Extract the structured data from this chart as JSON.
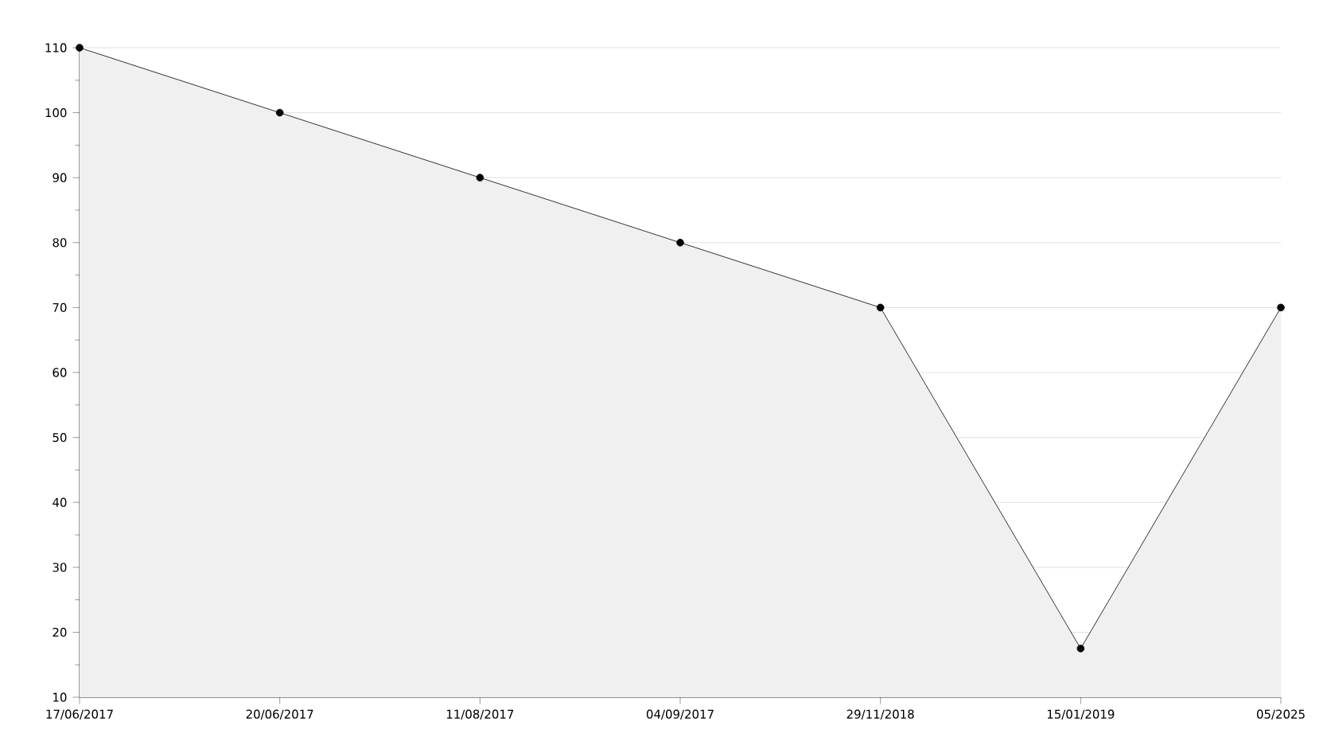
{
  "chart_data": {
    "type": "area",
    "categories": [
      "17/06/2017",
      "20/06/2017",
      "11/08/2017",
      "04/09/2017",
      "29/11/2018",
      "15/01/2019",
      "05/2025"
    ],
    "series": [
      {
        "color": "#000000",
        "values": [
          110,
          100,
          90,
          80,
          70,
          17.5,
          70
        ]
      }
    ],
    "ylim": [
      10,
      110
    ],
    "yticks": [
      10,
      20,
      30,
      40,
      50,
      60,
      70,
      80,
      90,
      100,
      110
    ],
    "grid": "y",
    "marker": "circle",
    "line_style": "solid"
  }
}
